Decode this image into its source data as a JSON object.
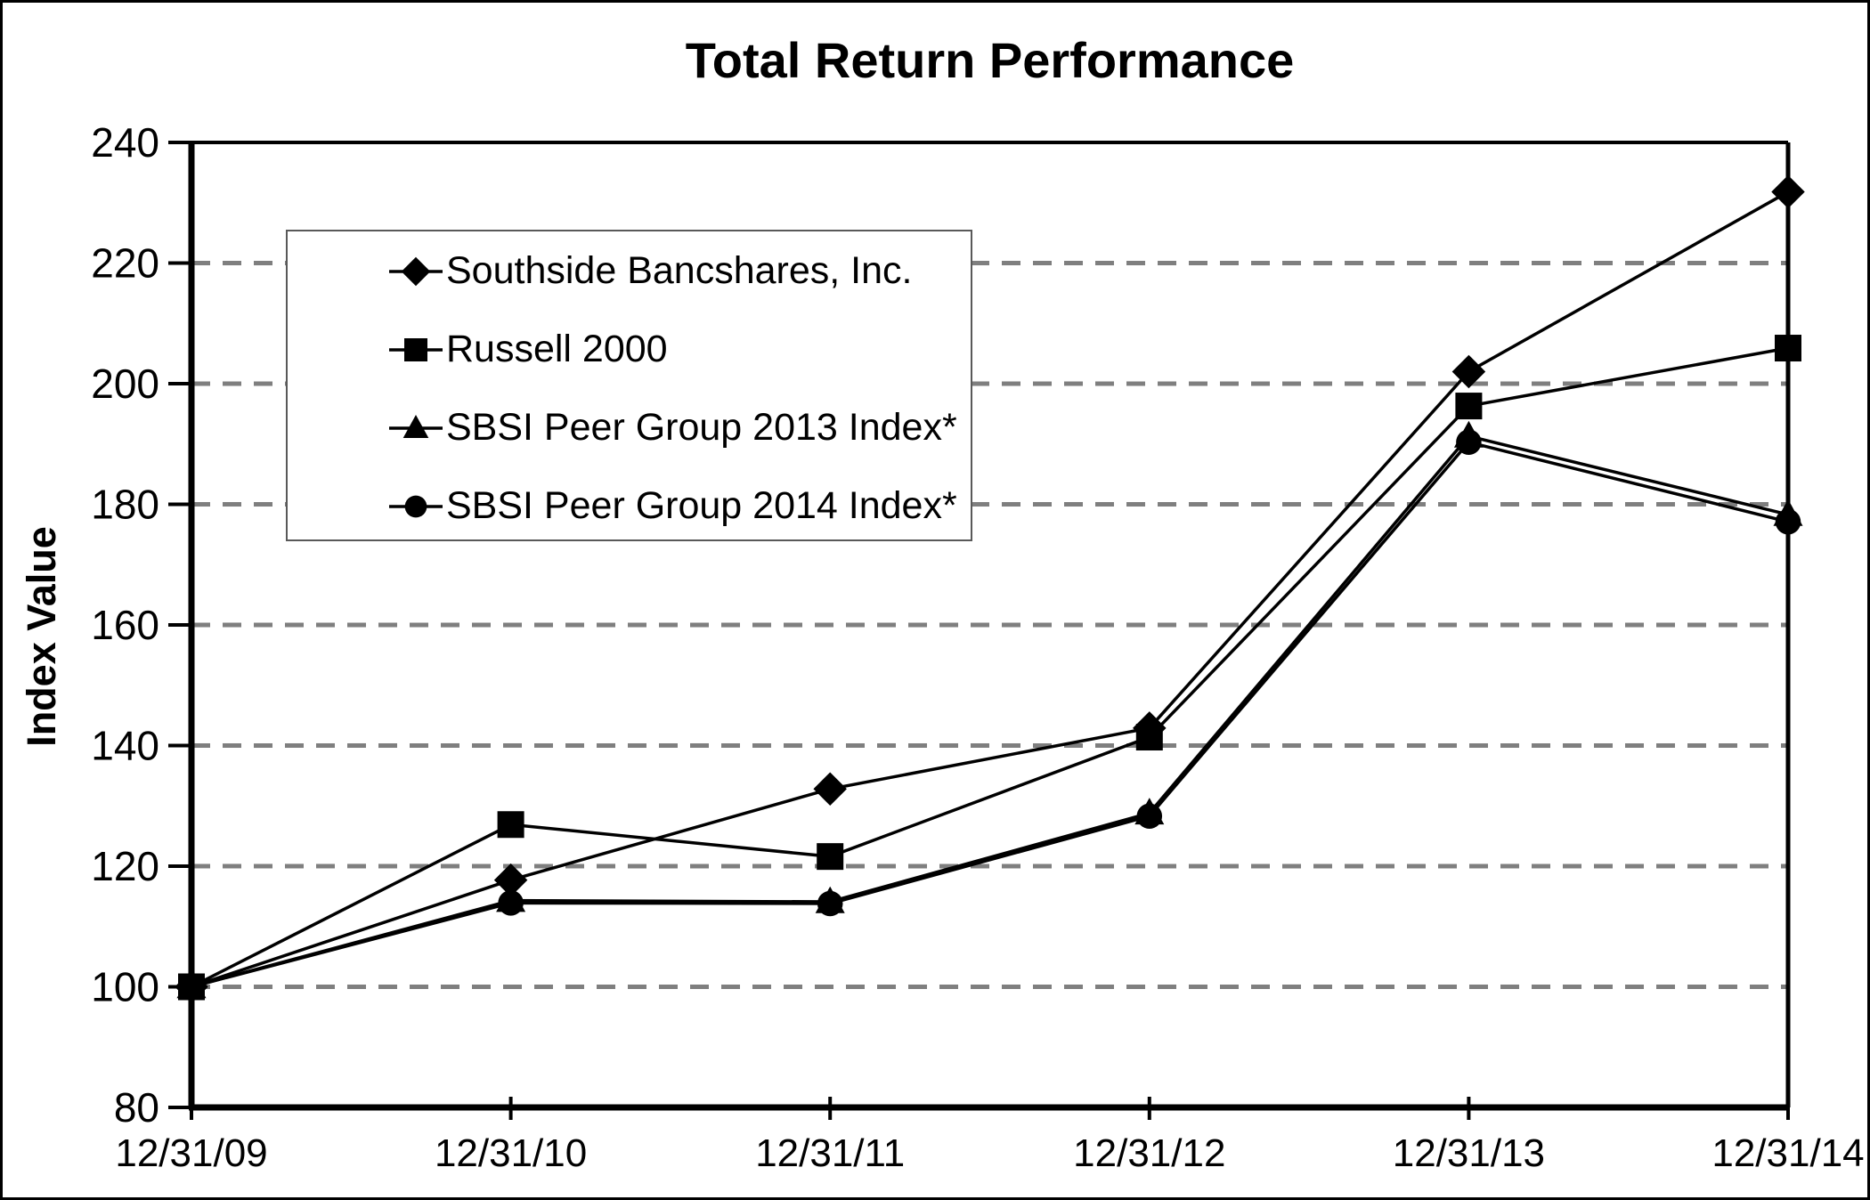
{
  "figure": {
    "title": "Total Return Performance",
    "y_axis_label": "Index Value"
  },
  "chart_data": {
    "type": "line",
    "title": "Total Return Performance",
    "xlabel": "",
    "ylabel": "Index Value",
    "ylim": [
      80,
      240
    ],
    "ytick_step": 20,
    "yticks": [
      80,
      100,
      120,
      140,
      160,
      180,
      200,
      220,
      240
    ],
    "grid": "horizontal dashed gridlines at 100-220, step 20",
    "legend_position": "upper-left inside plot area",
    "categories": [
      "12/31/09",
      "12/31/10",
      "12/31/11",
      "12/31/12",
      "12/31/13",
      "12/31/14"
    ],
    "series": [
      {
        "name": "Southside Bancshares, Inc.",
        "marker": "diamond",
        "color": "#000000",
        "values": [
          100,
          117.7,
          132.8,
          142.9,
          202.0,
          231.8
        ]
      },
      {
        "name": "Russell 2000",
        "marker": "square",
        "color": "#000000",
        "values": [
          100,
          126.9,
          121.6,
          141.4,
          196.3,
          205.9
        ]
      },
      {
        "name": "SBSI Peer Group 2013 Index*",
        "marker": "triangle",
        "color": "#000000",
        "values": [
          100,
          114.3,
          114.1,
          128.8,
          191.3,
          178.3
        ]
      },
      {
        "name": "SBSI Peer Group 2014 Index*",
        "marker": "circle",
        "color": "#000000",
        "values": [
          100,
          113.9,
          113.8,
          128.3,
          190.3,
          177.1
        ]
      }
    ]
  },
  "colors": {
    "line": "#000000",
    "grid": "#7f7f7f",
    "frame": "#000000",
    "background": "#ffffff",
    "legend_border": "#595959"
  }
}
